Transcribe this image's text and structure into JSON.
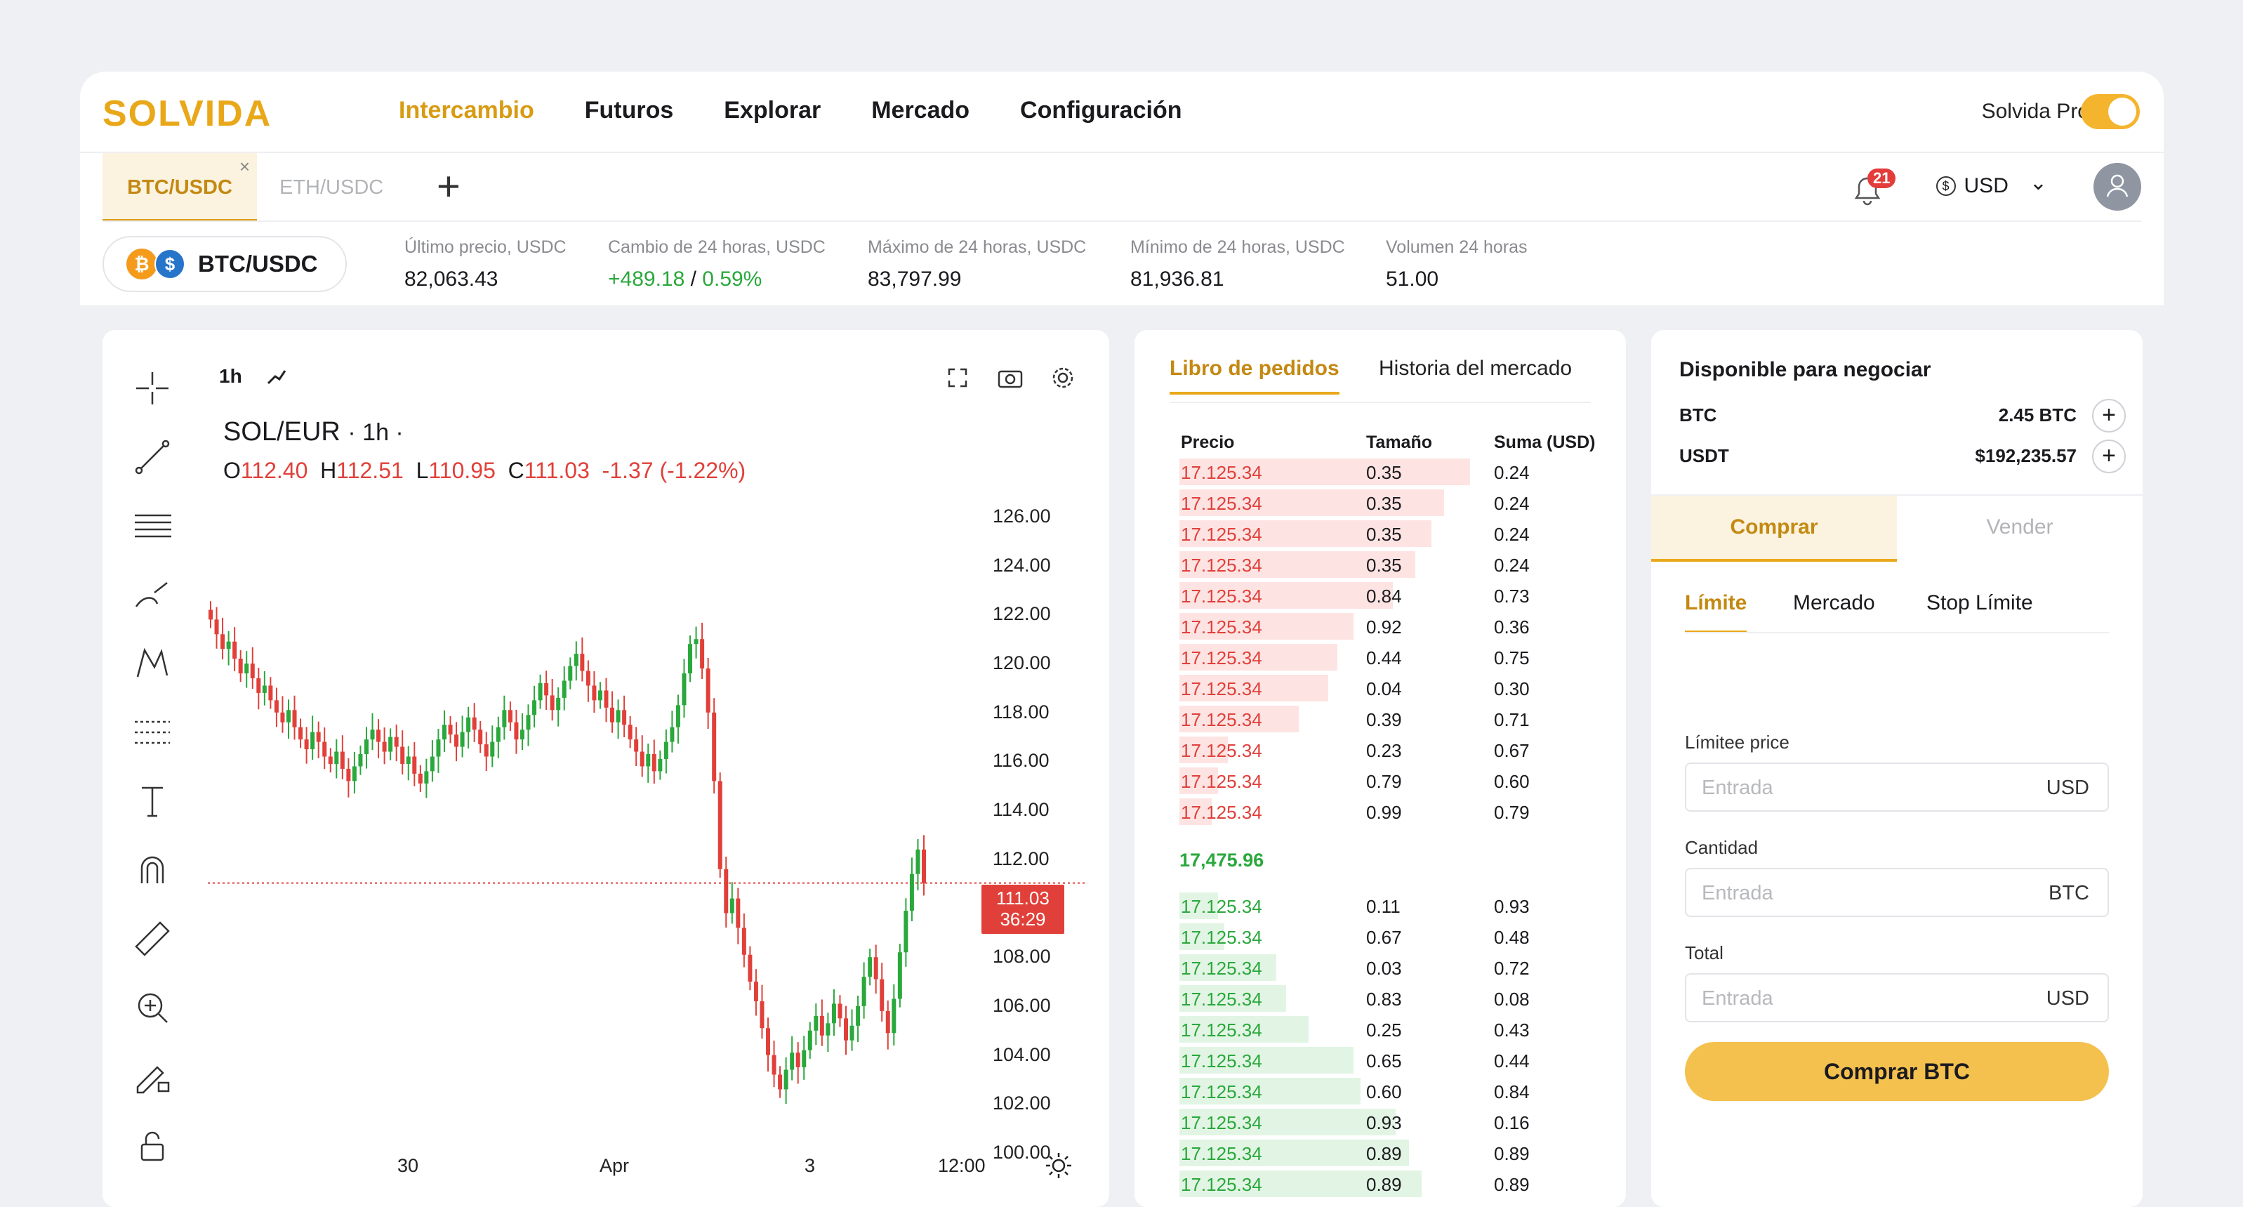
{
  "brand": {
    "logo_text": "SOLVIDA"
  },
  "nav": [
    {
      "label": "Intercambio",
      "active": true
    },
    {
      "label": "Futuros"
    },
    {
      "label": "Explorar"
    },
    {
      "label": "Mercado"
    },
    {
      "label": "Configuración"
    }
  ],
  "pro": {
    "label": "Solvida Pro",
    "enabled": true
  },
  "tabs": [
    {
      "label": "BTC/USDC",
      "active": true,
      "close": "×"
    },
    {
      "label": "ETH/USDC"
    }
  ],
  "add_tab": "+",
  "notifications": {
    "count": "21"
  },
  "currency": {
    "symbol": "$",
    "label": "USD",
    "caret": "⌄"
  },
  "pair": {
    "label": "BTC/USDC",
    "coin1": "₿",
    "coin2": "$"
  },
  "stats": [
    {
      "label": "Último precio, USDC",
      "value": "82,063.43"
    },
    {
      "label": "Cambio de 24 horas, USDC",
      "value": "+489.18",
      "sep": " / ",
      "value2": "0.59%"
    },
    {
      "label": "Máximo de 24 horas, USDC",
      "value": "83,797.99"
    },
    {
      "label": "Mínimo de 24 horas, USDC",
      "value": "81,936.81"
    },
    {
      "label": "Volumen 24 horas",
      "value": "51.00"
    }
  ],
  "chart": {
    "interval": "1h",
    "symbol": "SOL/EUR",
    "symbol_interval": "· 1h ·",
    "ohlc": {
      "o_label": "O",
      "o": "112.40",
      "h_label": "H",
      "h": "112.51",
      "l_label": "L",
      "l": "110.95",
      "c_label": "C",
      "c": "111.03",
      "change": "-1.37 (-1.22%)"
    },
    "last_price": "111.03",
    "countdown": "36:29",
    "colors": {
      "up": "#2aa83c",
      "down": "#e1403a"
    }
  },
  "chart_data": {
    "type": "candlestick",
    "title": "SOL/EUR · 1h",
    "y_ticks": [
      "126.00",
      "124.00",
      "122.00",
      "120.00",
      "118.00",
      "116.00",
      "114.00",
      "112.00",
      "108.00",
      "106.00",
      "104.00",
      "102.00",
      "100.00"
    ],
    "x_ticks": [
      "30",
      "Apr",
      "3",
      "12:00"
    ],
    "ylim": [
      99,
      127
    ],
    "last_close": 111.03,
    "closes": [
      121.8,
      121.2,
      120.6,
      120.9,
      120.2,
      119.6,
      120.0,
      119.4,
      118.8,
      119.1,
      118.5,
      118.0,
      117.6,
      118.1,
      117.4,
      116.9,
      116.5,
      117.2,
      116.8,
      116.2,
      115.9,
      116.4,
      115.7,
      115.2,
      115.8,
      116.3,
      116.9,
      117.3,
      116.8,
      116.4,
      117.0,
      116.6,
      115.9,
      116.2,
      115.5,
      115.1,
      115.6,
      116.2,
      116.9,
      117.5,
      117.1,
      116.6,
      117.2,
      117.8,
      117.3,
      116.7,
      116.2,
      116.8,
      117.4,
      118.1,
      117.6,
      116.9,
      117.3,
      117.9,
      118.5,
      119.2,
      118.7,
      118.1,
      118.6,
      119.3,
      119.9,
      120.4,
      119.7,
      119.1,
      118.5,
      118.9,
      118.2,
      117.6,
      118.1,
      117.5,
      116.9,
      116.4,
      115.8,
      116.3,
      115.6,
      116.1,
      116.8,
      117.4,
      118.3,
      119.6,
      120.8,
      121.0,
      119.8,
      118.0,
      115.2,
      111.6,
      109.8,
      110.4,
      109.2,
      108.1,
      107.0,
      106.2,
      105.1,
      104.0,
      103.2,
      102.6,
      103.4,
      104.1,
      103.5,
      104.2,
      105.0,
      105.6,
      104.8,
      105.3,
      106.1,
      105.5,
      104.6,
      105.2,
      106.0,
      107.2,
      108.0,
      107.1,
      105.8,
      104.9,
      106.3,
      108.2,
      109.9,
      111.4,
      112.4,
      111.03
    ]
  },
  "book": {
    "tabs": [
      "Libro de pedidos",
      "Historia del mercado"
    ],
    "headers": [
      "Precio",
      "Tamaño",
      "Suma (USD)"
    ],
    "asks": [
      {
        "price": "17.125.34",
        "size": "0.35",
        "sum": "0.24",
        "depth": 0.9
      },
      {
        "price": "17.125.34",
        "size": "0.35",
        "sum": "0.24",
        "depth": 0.82
      },
      {
        "price": "17.125.34",
        "size": "0.35",
        "sum": "0.24",
        "depth": 0.78
      },
      {
        "price": "17.125.34",
        "size": "0.35",
        "sum": "0.24",
        "depth": 0.73
      },
      {
        "price": "17.125.34",
        "size": "0.84",
        "sum": "0.73",
        "depth": 0.66
      },
      {
        "price": "17.125.34",
        "size": "0.92",
        "sum": "0.36",
        "depth": 0.54
      },
      {
        "price": "17.125.34",
        "size": "0.44",
        "sum": "0.75",
        "depth": 0.49
      },
      {
        "price": "17.125.34",
        "size": "0.04",
        "sum": "0.30",
        "depth": 0.46
      },
      {
        "price": "17.125.34",
        "size": "0.39",
        "sum": "0.71",
        "depth": 0.37
      },
      {
        "price": "17.125.34",
        "size": "0.23",
        "sum": "0.67",
        "depth": 0.15
      },
      {
        "price": "17.125.34",
        "size": "0.79",
        "sum": "0.60",
        "depth": 0.12
      },
      {
        "price": "17.125.34",
        "size": "0.99",
        "sum": "0.79",
        "depth": 0.1
      }
    ],
    "mid_price": "17,475.96",
    "bids": [
      {
        "price": "17.125.34",
        "size": "0.11",
        "sum": "0.93",
        "depth": 0.12
      },
      {
        "price": "17.125.34",
        "size": "0.67",
        "sum": "0.48",
        "depth": 0.14
      },
      {
        "price": "17.125.34",
        "size": "0.03",
        "sum": "0.72",
        "depth": 0.3
      },
      {
        "price": "17.125.34",
        "size": "0.83",
        "sum": "0.08",
        "depth": 0.33
      },
      {
        "price": "17.125.34",
        "size": "0.25",
        "sum": "0.43",
        "depth": 0.4
      },
      {
        "price": "17.125.34",
        "size": "0.65",
        "sum": "0.44",
        "depth": 0.54
      },
      {
        "price": "17.125.34",
        "size": "0.60",
        "sum": "0.84",
        "depth": 0.56
      },
      {
        "price": "17.125.34",
        "size": "0.93",
        "sum": "0.16",
        "depth": 0.67
      },
      {
        "price": "17.125.34",
        "size": "0.89",
        "sum": "0.89",
        "depth": 0.71
      },
      {
        "price": "17.125.34",
        "size": "0.89",
        "sum": "0.89",
        "depth": 0.75
      }
    ]
  },
  "trade": {
    "title": "Disponible para negociar",
    "balances": [
      {
        "asset": "BTC",
        "amount": "2.45 BTC",
        "plus": "+"
      },
      {
        "asset": "USDT",
        "amount": "$192,235.57",
        "plus": "+"
      }
    ],
    "buy_label": "Comprar",
    "sell_label": "Vender",
    "order_tabs": [
      "Límite",
      "Mercado",
      "Stop Límite"
    ],
    "fields": [
      {
        "label": "Límitee price",
        "placeholder": "Entrada",
        "unit": "USD"
      },
      {
        "label": "Cantidad",
        "placeholder": "Entrada",
        "unit": "BTC"
      },
      {
        "label": "Total",
        "placeholder": "Entrada",
        "unit": "USD"
      }
    ],
    "submit_label": "Comprar BTC"
  }
}
